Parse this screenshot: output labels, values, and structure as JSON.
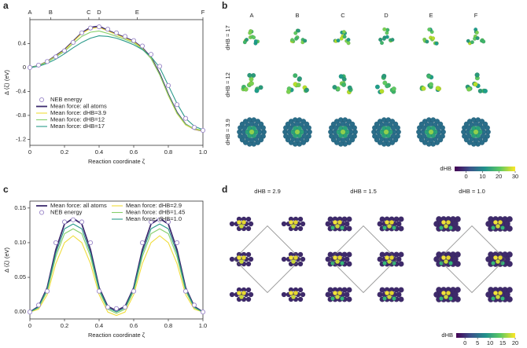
{
  "chart_data": [
    {
      "type": "line",
      "label": "a",
      "xlabel": "Reaction coordinate ζ",
      "ylabel": "Δ ⟨ζ⟩ (eV)",
      "xlim": [
        0,
        1
      ],
      "xticks": [
        0,
        0.2,
        0.4,
        0.6,
        0.8,
        {
          "value": 1,
          "label": "1.0"
        }
      ],
      "ylim": [
        -1.3,
        0.8
      ],
      "yticks": [
        -1.2,
        -0.8,
        -0.4,
        0,
        0.4
      ],
      "top_ticks": [
        {
          "value": 0,
          "label": "A"
        },
        {
          "value": 0.12,
          "label": "B"
        },
        {
          "value": 0.34,
          "label": "C"
        },
        {
          "value": 0.4,
          "label": "D"
        },
        {
          "value": 0.62,
          "label": "E"
        },
        {
          "value": 1,
          "label": "F"
        }
      ],
      "legend": "lower left",
      "x": [
        0,
        0.05,
        0.1,
        0.15,
        0.2,
        0.25,
        0.3,
        0.35,
        0.4,
        0.45,
        0.5,
        0.55,
        0.6,
        0.65,
        0.7,
        0.75,
        0.8,
        0.85,
        0.9,
        0.95,
        1
      ],
      "series": [
        {
          "name": "NEB energy",
          "style": "marker",
          "color": "#9a86c8",
          "values": [
            0,
            0.04,
            0.1,
            0.18,
            0.28,
            0.42,
            0.58,
            0.66,
            0.68,
            0.64,
            0.58,
            0.52,
            0.45,
            0.36,
            0.22,
            0.02,
            -0.3,
            -0.62,
            -0.85,
            -1.0,
            -1.05
          ]
        },
        {
          "name": "Mean force: all atoms",
          "style": "line",
          "color": "#3b2a6e",
          "values": [
            0,
            0.03,
            0.1,
            0.2,
            0.3,
            0.44,
            0.58,
            0.67,
            0.69,
            0.62,
            0.56,
            0.5,
            0.44,
            0.33,
            0.17,
            -0.1,
            -0.45,
            -0.75,
            -0.95,
            -1.03,
            -1.06
          ]
        },
        {
          "name": "Mean force: dHB=3.9",
          "style": "line",
          "color": "#f0dc3a",
          "values": [
            0,
            0.03,
            0.1,
            0.19,
            0.29,
            0.43,
            0.57,
            0.65,
            0.67,
            0.61,
            0.55,
            0.49,
            0.43,
            0.32,
            0.16,
            -0.12,
            -0.47,
            -0.77,
            -0.96,
            -1.03,
            -1.06
          ]
        },
        {
          "name": "Mean force: dHB=12",
          "style": "line",
          "color": "#86cf6a",
          "values": [
            0,
            0.03,
            0.09,
            0.18,
            0.27,
            0.4,
            0.52,
            0.59,
            0.61,
            0.57,
            0.52,
            0.47,
            0.41,
            0.31,
            0.15,
            -0.12,
            -0.46,
            -0.76,
            -0.95,
            -1.02,
            -1.05
          ]
        },
        {
          "name": "Mean force: dHB=17",
          "style": "line",
          "color": "#2a9a8a",
          "values": [
            0,
            0.02,
            0.07,
            0.14,
            0.23,
            0.33,
            0.42,
            0.49,
            0.53,
            0.52,
            0.49,
            0.44,
            0.38,
            0.3,
            0.18,
            0,
            -0.3,
            -0.6,
            -0.85,
            -0.98,
            -1.04
          ]
        }
      ]
    },
    {
      "type": "line",
      "label": "c",
      "xlabel": "Reaction coordinate ζ",
      "ylabel": "Δ ⟨ζ⟩ (eV)",
      "xlim": [
        0,
        1
      ],
      "xticks": [
        0,
        0.2,
        0.4,
        0.6,
        0.8,
        {
          "value": 1,
          "label": "1.0"
        }
      ],
      "ylim": [
        -0.01,
        0.16
      ],
      "yticks": [
        {
          "value": 0,
          "label": "0.00"
        },
        {
          "value": 0.05,
          "label": "0.05"
        },
        {
          "value": 0.1,
          "label": "0.10"
        },
        0.15
      ],
      "legend": "upper center",
      "legend_columns": 2,
      "x": [
        0,
        0.05,
        0.1,
        0.15,
        0.2,
        0.25,
        0.3,
        0.35,
        0.4,
        0.45,
        0.5,
        0.55,
        0.6,
        0.65,
        0.7,
        0.75,
        0.8,
        0.85,
        0.9,
        0.95,
        1
      ],
      "series": [
        {
          "name": "Mean force: all atoms",
          "style": "line",
          "color": "#3b2a6e",
          "values": [
            0,
            0.008,
            0.035,
            0.09,
            0.127,
            0.135,
            0.127,
            0.09,
            0.035,
            0.008,
            0.002,
            0.008,
            0.035,
            0.09,
            0.127,
            0.135,
            0.127,
            0.09,
            0.035,
            0.008,
            0
          ]
        },
        {
          "name": "NEB energy",
          "style": "marker",
          "color": "#9a86c8",
          "values": [
            0,
            0.01,
            0.03,
            0.1,
            0.13,
            0.133,
            0.13,
            0.1,
            0.03,
            0.007,
            0.005,
            0.007,
            0.03,
            0.1,
            0.13,
            0.133,
            0.13,
            0.1,
            0.03,
            0.01,
            0
          ]
        },
        {
          "name": "Mean force: dHB=2.9",
          "style": "line",
          "color": "#f0dc3a",
          "values": [
            0,
            0.004,
            0.025,
            0.07,
            0.1,
            0.11,
            0.1,
            0.07,
            0.025,
            0,
            -0.005,
            0,
            0.025,
            0.07,
            0.1,
            0.11,
            0.1,
            0.07,
            0.025,
            0.004,
            0
          ]
        },
        {
          "name": "Mean force: dHB=1.45",
          "style": "line",
          "color": "#86cf6a",
          "values": [
            0,
            0.006,
            0.03,
            0.08,
            0.113,
            0.12,
            0.113,
            0.08,
            0.03,
            0.004,
            -0.002,
            0.004,
            0.03,
            0.08,
            0.113,
            0.12,
            0.113,
            0.08,
            0.03,
            0.006,
            0
          ]
        },
        {
          "name": "Mean force: dHB=1.0",
          "style": "line",
          "color": "#2a9a8a",
          "values": [
            0,
            0.007,
            0.033,
            0.085,
            0.12,
            0.127,
            0.12,
            0.085,
            0.033,
            0.006,
            0,
            0.006,
            0.033,
            0.085,
            0.12,
            0.127,
            0.12,
            0.085,
            0.033,
            0.007,
            0
          ]
        }
      ]
    }
  ],
  "panel_b": {
    "label": "b",
    "columns": [
      "A",
      "B",
      "C",
      "D",
      "E",
      "F"
    ],
    "rows": [
      "dHB = 17",
      "dHB = 12",
      "dHB = 3.9"
    ],
    "colorbar": {
      "title": "dHB",
      "range": [
        -7,
        30
      ],
      "ticks": [
        0,
        10,
        20,
        30
      ]
    }
  },
  "panel_d": {
    "label": "d",
    "titles": [
      "dHB = 2.9",
      "dHB = 1.5",
      "dHB = 1.0"
    ],
    "colorbar": {
      "title": "dHB",
      "range": [
        -3.5,
        20
      ],
      "ticks": [
        0,
        5,
        10,
        15,
        20
      ]
    }
  }
}
